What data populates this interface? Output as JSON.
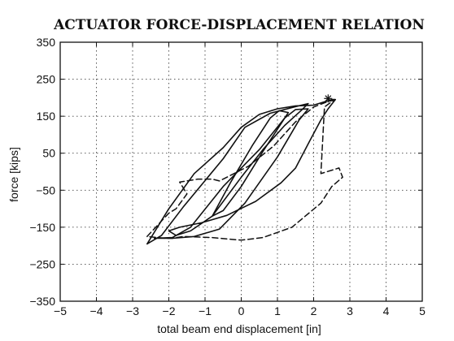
{
  "chart_data": {
    "type": "line",
    "title": "ACTUATOR FORCE-DISPLACEMENT RELATION",
    "xlabel": "total beam end displacement [in]",
    "ylabel": "force [kips]",
    "xlim": [
      -5,
      5
    ],
    "ylim": [
      -350,
      350
    ],
    "x_ticks": [
      -5,
      -4,
      -3,
      -2,
      -1,
      0,
      1,
      2,
      3,
      4,
      5
    ],
    "x_tick_labels": [
      "−5",
      "−4",
      "−3",
      "−2",
      "−1",
      "0",
      "1",
      "2",
      "3",
      "4",
      "5"
    ],
    "y_ticks": [
      350,
      250,
      150,
      50,
      -50,
      -150,
      -250,
      -350
    ],
    "y_tick_labels": [
      "350",
      "250",
      "150",
      "50",
      "−50",
      "−150",
      "−250",
      "−350"
    ],
    "grid": true,
    "series": [
      {
        "style": "solid",
        "width": 1.6,
        "points": [
          [
            -0.8,
            -120
          ],
          [
            -0.3,
            -30
          ],
          [
            0.3,
            70
          ],
          [
            0.8,
            145
          ],
          [
            1.05,
            165
          ],
          [
            1.3,
            160
          ],
          [
            0.6,
            55
          ],
          [
            0,
            -40
          ],
          [
            -0.5,
            -105
          ],
          [
            -0.8,
            -120
          ]
        ]
      },
      {
        "style": "solid",
        "width": 1.6,
        "points": [
          [
            -2.4,
            -180
          ],
          [
            -1.9,
            -178
          ],
          [
            -1.4,
            -150
          ],
          [
            -0.5,
            -40
          ],
          [
            0.5,
            60
          ],
          [
            1.2,
            145
          ],
          [
            1.5,
            168
          ],
          [
            1.85,
            170
          ],
          [
            1.6,
            140
          ],
          [
            1.0,
            40
          ],
          [
            0.1,
            -85
          ],
          [
            -0.6,
            -155
          ],
          [
            -1.3,
            -175
          ],
          [
            -1.9,
            -180
          ],
          [
            -2.4,
            -180
          ]
        ]
      },
      {
        "style": "solid",
        "width": 1.6,
        "points": [
          [
            -2.6,
            -195
          ],
          [
            -2.2,
            -172
          ],
          [
            -1.6,
            -95
          ],
          [
            -0.5,
            35
          ],
          [
            0.1,
            120
          ],
          [
            0.8,
            158
          ],
          [
            1.5,
            176
          ],
          [
            1.85,
            184
          ],
          [
            1.65,
            165
          ],
          [
            1.2,
            125
          ],
          [
            0.6,
            60
          ],
          [
            0,
            -15
          ],
          [
            -0.8,
            -120
          ],
          [
            -1.4,
            -160
          ],
          [
            -1.8,
            -172
          ],
          [
            -2.0,
            -160
          ],
          [
            -1.7,
            -150
          ],
          [
            -1.1,
            -138
          ],
          [
            -0.4,
            -118
          ],
          [
            0.4,
            -80
          ],
          [
            1.1,
            -30
          ],
          [
            1.5,
            10
          ],
          [
            1.9,
            85
          ],
          [
            2.2,
            140
          ],
          [
            2.4,
            170
          ],
          [
            2.6,
            195
          ],
          [
            2.5,
            195
          ],
          [
            2.0,
            180
          ],
          [
            1.5,
            178
          ],
          [
            1.0,
            170
          ],
          [
            0.5,
            155
          ],
          [
            0,
            120
          ],
          [
            -0.5,
            65
          ],
          [
            -1.3,
            -5
          ],
          [
            -2.0,
            -100
          ],
          [
            -2.6,
            -195
          ]
        ]
      },
      {
        "style": "dashed",
        "width": 1.5,
        "points": [
          [
            -2.6,
            -175
          ],
          [
            -2.0,
            -112
          ],
          [
            -1.8,
            -100
          ],
          [
            -1.5,
            -60
          ],
          [
            -1.7,
            -28
          ],
          [
            -1.2,
            -20
          ],
          [
            -0.8,
            -20
          ],
          [
            -0.6,
            -25
          ],
          [
            0.2,
            15
          ],
          [
            0.9,
            70
          ],
          [
            1.5,
            135
          ],
          [
            2.0,
            175
          ],
          [
            2.4,
            190
          ],
          [
            2.55,
            193
          ],
          [
            2.3,
            175
          ],
          [
            2.2,
            -5
          ],
          [
            2.7,
            10
          ],
          [
            2.8,
            -15
          ],
          [
            2.5,
            -40
          ],
          [
            2.2,
            -85
          ],
          [
            1.4,
            -150
          ],
          [
            0.6,
            -178
          ],
          [
            0,
            -185
          ],
          [
            -0.8,
            -178
          ],
          [
            -1.6,
            -175
          ],
          [
            -1.9,
            -180
          ],
          [
            -2.1,
            -180
          ],
          [
            -2.6,
            -175
          ]
        ]
      }
    ],
    "markers": [
      {
        "symbol": "asterisk",
        "x": 2.4,
        "y": 198
      }
    ]
  }
}
